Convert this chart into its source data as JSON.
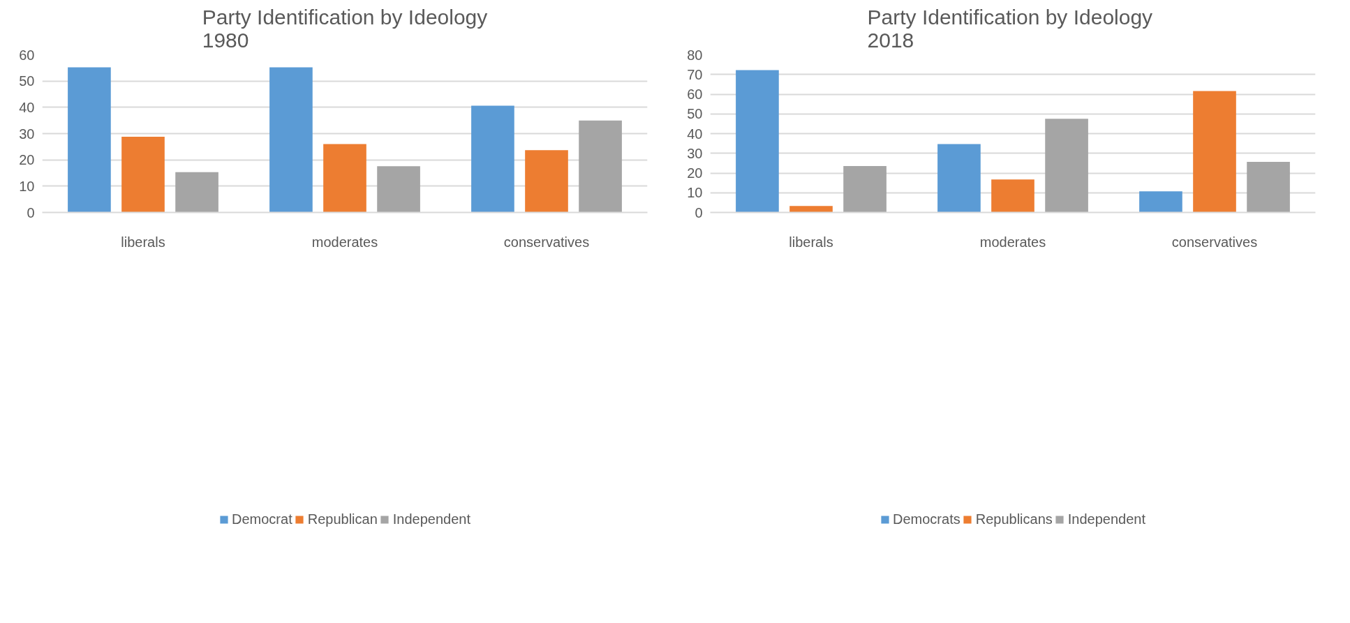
{
  "chart_data": [
    {
      "type": "bar",
      "title": "Party Identification by Ideology\n1980",
      "categories": [
        "liberals",
        "moderates",
        "conservatives"
      ],
      "series": [
        {
          "name": "Democrat",
          "color": "#5b9bd5",
          "values": [
            55.2,
            55.2,
            40.6
          ]
        },
        {
          "name": "Republican",
          "color": "#ed7d31",
          "values": [
            28.8,
            26.0,
            23.7
          ]
        },
        {
          "name": "Independent",
          "color": "#a5a5a5",
          "values": [
            15.3,
            17.6,
            35.0
          ]
        }
      ],
      "ylim": [
        0,
        60
      ],
      "yticks": [
        0,
        10,
        20,
        30,
        40,
        50,
        60
      ],
      "grid": "y",
      "legend": "bottom"
    },
    {
      "type": "bar",
      "title": "Party Identification  by Ideology\n2018",
      "categories": [
        "liberals",
        "moderates",
        "conservatives"
      ],
      "series": [
        {
          "name": "Democrats",
          "color": "#5b9bd5",
          "values": [
            72.2,
            34.7,
            10.7
          ]
        },
        {
          "name": "Republicans",
          "color": "#ed7d31",
          "values": [
            3.3,
            16.7,
            61.6
          ]
        },
        {
          "name": "Independent",
          "color": "#a5a5a5",
          "values": [
            23.5,
            47.5,
            25.7
          ]
        }
      ],
      "ylim": [
        0,
        80
      ],
      "yticks": [
        0,
        10,
        20,
        30,
        40,
        50,
        60,
        70,
        80
      ],
      "grid": "y",
      "legend": "bottom"
    }
  ]
}
